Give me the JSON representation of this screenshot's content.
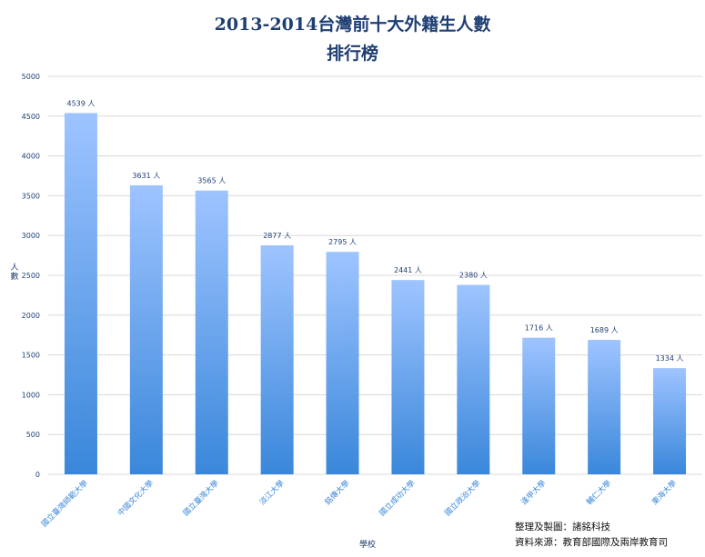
{
  "chart_data": {
    "type": "bar",
    "title": "2013-2014台灣前十大外籍生人數",
    "subtitle": "排行榜",
    "xlabel": "學校",
    "ylabel": "人數",
    "ylim": [
      0,
      5000
    ],
    "yticks": [
      0,
      500,
      1000,
      1500,
      2000,
      2500,
      3000,
      3500,
      4000,
      4500,
      5000
    ],
    "grid": true,
    "categories": [
      "國立臺灣師範大學",
      "中國文化大學",
      "國立臺灣大學",
      "淡江大學",
      "銘傳大學",
      "國立成功大學",
      "國立政治大學",
      "逢甲大學",
      "輔仁大學",
      "東海大學"
    ],
    "values": [
      4539,
      3631,
      3565,
      2877,
      2795,
      2441,
      2380,
      1716,
      1689,
      1334
    ],
    "value_suffix": " 人",
    "colors": {
      "bar_top": "#9ec4ff",
      "bar_bottom": "#3a87da",
      "title": "#1f3f73",
      "axis_text": "#1f3f73",
      "grid": "#d8d8d8"
    }
  },
  "notes": {
    "producer": "整理及製圖：諸銘科技",
    "source": "資料來源：教育部國際及兩岸教育司"
  }
}
